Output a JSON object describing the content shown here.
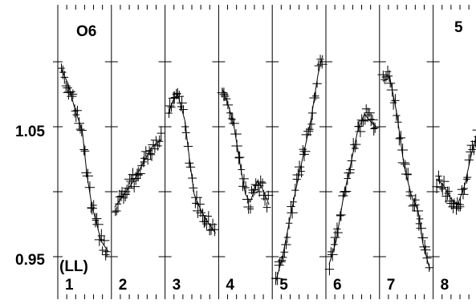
{
  "chart_data": {
    "type": "scatter",
    "title": "",
    "xlabel": "",
    "ylabel": "",
    "ylim": [
      0.92,
      1.1
    ],
    "y_ticks": [
      0.95,
      1.0,
      1.05,
      1.1
    ],
    "y_tick_labels": [
      "0.95",
      "1.05"
    ],
    "labels": {
      "top_left": "O6",
      "top_right": "5",
      "bottom_left": "(LL)"
    },
    "grid": false,
    "legend": "none",
    "panels": [
      {
        "label": "1",
        "trend": [
          [
            0.0,
            1.095
          ],
          [
            0.15,
            1.083
          ],
          [
            0.3,
            1.063
          ],
          [
            0.45,
            1.047
          ],
          [
            0.55,
            1.013
          ],
          [
            0.65,
            0.99
          ],
          [
            0.75,
            0.976
          ],
          [
            0.85,
            0.962
          ],
          [
            1.0,
            0.954
          ]
        ]
      },
      {
        "label": "2",
        "trend": [
          [
            0.0,
            0.988
          ],
          [
            0.2,
            0.998
          ],
          [
            0.4,
            1.008
          ],
          [
            0.6,
            1.022
          ],
          [
            0.8,
            1.035
          ],
          [
            1.0,
            1.04
          ]
        ]
      },
      {
        "label": "3",
        "trend": [
          [
            0.0,
            1.06
          ],
          [
            0.1,
            1.07
          ],
          [
            0.2,
            1.075
          ],
          [
            0.35,
            1.055
          ],
          [
            0.45,
            1.025
          ],
          [
            0.55,
            0.998
          ],
          [
            0.7,
            0.985
          ],
          [
            0.85,
            0.976
          ],
          [
            1.0,
            0.968
          ]
        ]
      },
      {
        "label": "4",
        "trend": [
          [
            0.0,
            1.08
          ],
          [
            0.15,
            1.065
          ],
          [
            0.25,
            1.052
          ],
          [
            0.4,
            1.018
          ],
          [
            0.5,
            0.998
          ],
          [
            0.6,
            0.992
          ],
          [
            0.75,
            1.008
          ],
          [
            0.85,
            1.003
          ],
          [
            1.0,
            0.99
          ]
        ]
      },
      {
        "label": "5",
        "trend": [
          [
            0.0,
            0.93
          ],
          [
            0.15,
            0.95
          ],
          [
            0.3,
            0.978
          ],
          [
            0.45,
            1.005
          ],
          [
            0.6,
            1.03
          ],
          [
            0.75,
            1.055
          ],
          [
            0.9,
            1.09
          ],
          [
            1.0,
            1.105
          ]
        ]
      },
      {
        "label": "6",
        "trend": [
          [
            0.0,
            0.944
          ],
          [
            0.15,
            0.962
          ],
          [
            0.3,
            0.995
          ],
          [
            0.45,
            1.02
          ],
          [
            0.6,
            1.046
          ],
          [
            0.75,
            1.06
          ],
          [
            0.85,
            1.055
          ],
          [
            1.0,
            1.05
          ]
        ]
      },
      {
        "label": "7",
        "trend": [
          [
            0.0,
            1.085
          ],
          [
            0.15,
            1.088
          ],
          [
            0.3,
            1.06
          ],
          [
            0.45,
            1.02
          ],
          [
            0.6,
            0.998
          ],
          [
            0.75,
            0.985
          ],
          [
            0.85,
            0.96
          ],
          [
            1.0,
            0.94
          ]
        ]
      },
      {
        "label": "8",
        "trend": [
          [
            0.0,
            1.01
          ],
          [
            0.15,
            1.005
          ],
          [
            0.3,
            0.995
          ],
          [
            0.45,
            0.99
          ],
          [
            0.6,
            1.005
          ],
          [
            0.75,
            1.03
          ],
          [
            0.9,
            1.05
          ],
          [
            1.0,
            1.07
          ]
        ]
      }
    ]
  }
}
